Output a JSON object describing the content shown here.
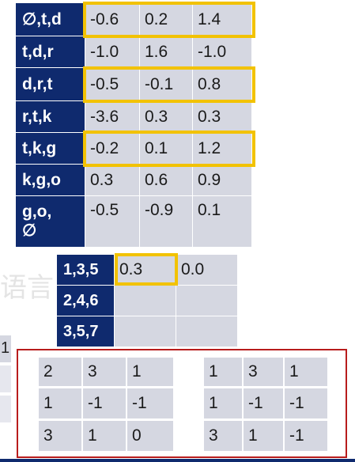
{
  "top_table": {
    "rows": [
      {
        "label": "∅,t,d",
        "values": [
          "-0.6",
          "0.2",
          "1.4"
        ]
      },
      {
        "label": "t,d,r",
        "values": [
          "-1.0",
          "1.6",
          "-1.0"
        ]
      },
      {
        "label": "d,r,t",
        "values": [
          "-0.5",
          "-0.1",
          "0.8"
        ]
      },
      {
        "label": "r,t,k",
        "values": [
          "-3.6",
          "0.3",
          "0.3"
        ]
      },
      {
        "label": "t,k,g",
        "values": [
          "-0.2",
          "0.1",
          "1.2"
        ]
      },
      {
        "label": "k,g,o",
        "values": [
          "0.3",
          "0.6",
          "0.9"
        ]
      },
      {
        "label": "g,o,\n∅",
        "values": [
          "-0.5",
          "-0.9",
          "0.1"
        ]
      }
    ]
  },
  "mid_table": {
    "rows": [
      {
        "label": "1,3,5",
        "values": [
          "0.3",
          "0.0"
        ]
      },
      {
        "label": "2,4,6",
        "values": [
          "",
          ""
        ]
      },
      {
        "label": "3,5,7",
        "values": [
          "",
          ""
        ]
      }
    ]
  },
  "matrices": [
    [
      [
        "2",
        "3",
        "1"
      ],
      [
        "1",
        "-1",
        "-1"
      ],
      [
        "3",
        "1",
        "0"
      ]
    ],
    [
      [
        "1",
        "3",
        "1"
      ],
      [
        "1",
        "-1",
        "-1"
      ],
      [
        "3",
        "1",
        "-1"
      ]
    ]
  ],
  "background_text": {
    "chars": "语言",
    "left_fragment": "1"
  },
  "colors": {
    "header_bg": "#0f2a6e",
    "cell_bg": "#d5d7e1",
    "highlight": "#f2c200",
    "red_box": "#b81c1c"
  }
}
